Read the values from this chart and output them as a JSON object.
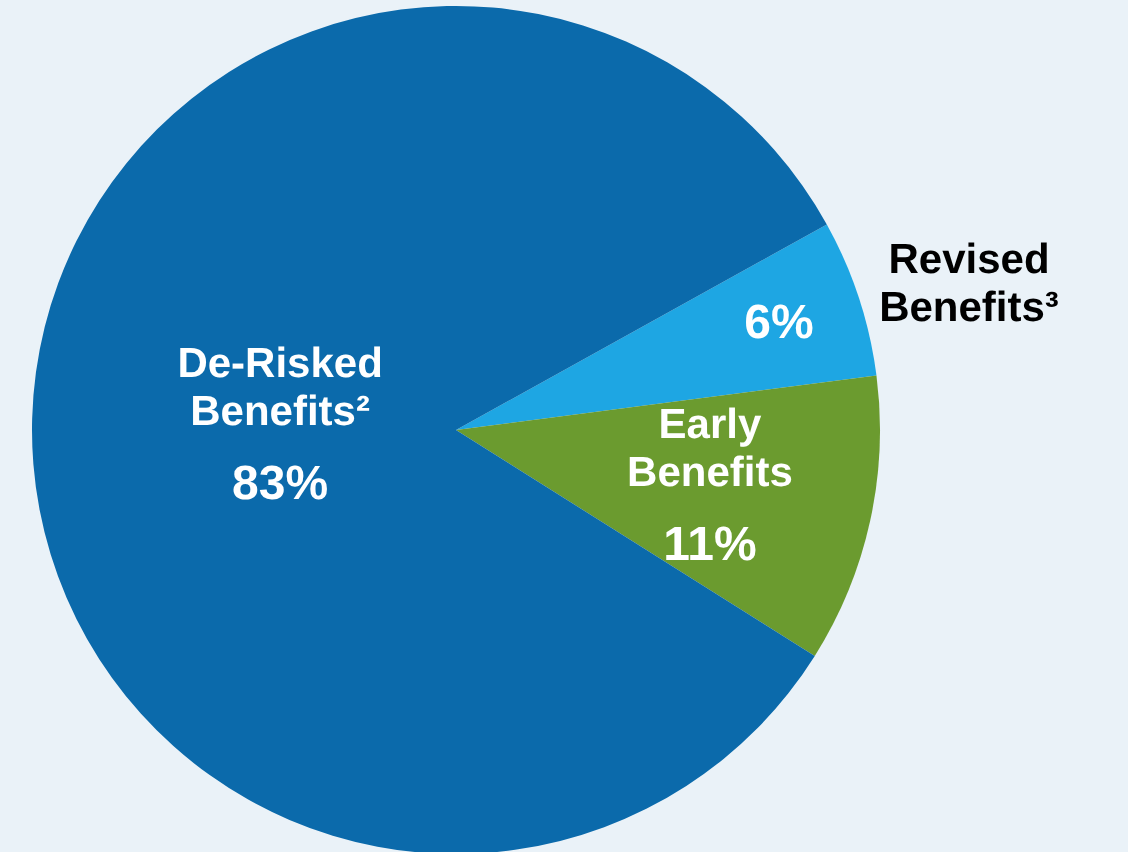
{
  "chart_data": {
    "type": "pie",
    "categories": [
      "Revised Benefits³",
      "Early Benefits",
      "De-Risked Benefits²"
    ],
    "values": [
      6,
      11,
      83
    ],
    "value_labels": [
      "6%",
      "11%",
      "83%"
    ],
    "colors": [
      "#1ea6e3",
      "#6b9b2f",
      "#0b6aab"
    ]
  }
}
